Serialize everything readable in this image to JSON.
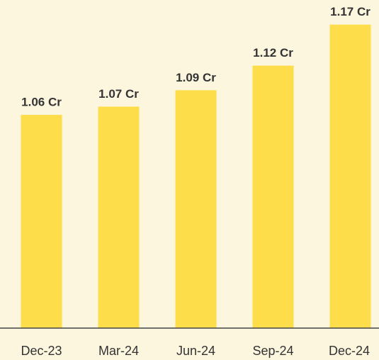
{
  "chart_data": {
    "type": "bar",
    "categories": [
      "Dec-23",
      "Mar-24",
      "Jun-24",
      "Sep-24",
      "Dec-24"
    ],
    "values": [
      1.06,
      1.07,
      1.09,
      1.12,
      1.17
    ],
    "value_labels": [
      "1.06 Cr",
      "1.07 Cr",
      "1.09 Cr",
      "1.12 Cr",
      "1.17 Cr"
    ],
    "color": "#fedd4b",
    "ylim": [
      0.8,
      1.2
    ]
  }
}
